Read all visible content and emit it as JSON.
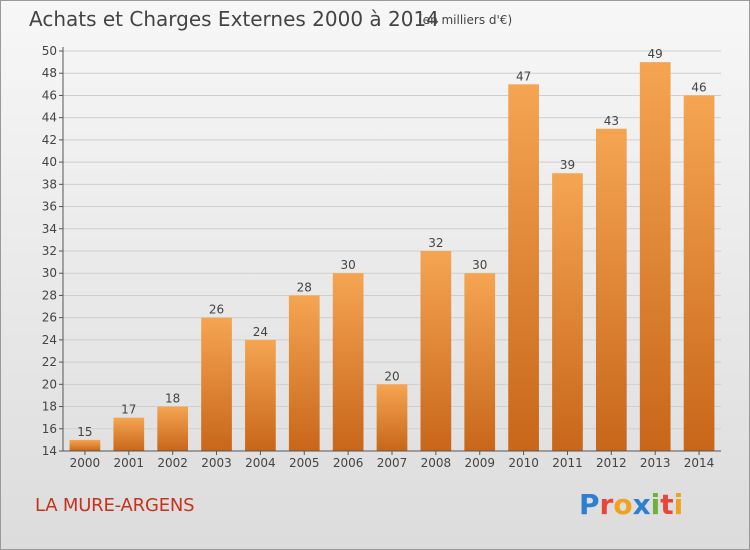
{
  "header": {
    "title": "Achats et Charges Externes 2000 à 2014",
    "unit": "(en milliers d'€)"
  },
  "footer": {
    "place": "LA MURE-ARGENS",
    "logo": "Proxiti",
    "logo_colors": [
      "#2f7fd1",
      "#e8463a",
      "#f0a21e",
      "#2f7fd1",
      "#6ab23a",
      "#e8463a",
      "#f0a21e"
    ]
  },
  "chart_data": {
    "type": "bar",
    "categories": [
      "2000",
      "2001",
      "2002",
      "2003",
      "2004",
      "2005",
      "2006",
      "2007",
      "2008",
      "2009",
      "2010",
      "2011",
      "2012",
      "2013",
      "2014"
    ],
    "values": [
      15,
      17,
      18,
      26,
      24,
      28,
      30,
      20,
      32,
      30,
      47,
      39,
      43,
      49,
      46
    ],
    "ylim": [
      14,
      50
    ],
    "yticks": [
      14,
      16,
      18,
      20,
      22,
      24,
      26,
      28,
      30,
      32,
      34,
      36,
      38,
      40,
      42,
      44,
      46,
      48,
      50
    ],
    "grid": true,
    "bar_colors": [
      "#f5a552",
      "#c8661a"
    ],
    "axis_color": "#555555"
  }
}
